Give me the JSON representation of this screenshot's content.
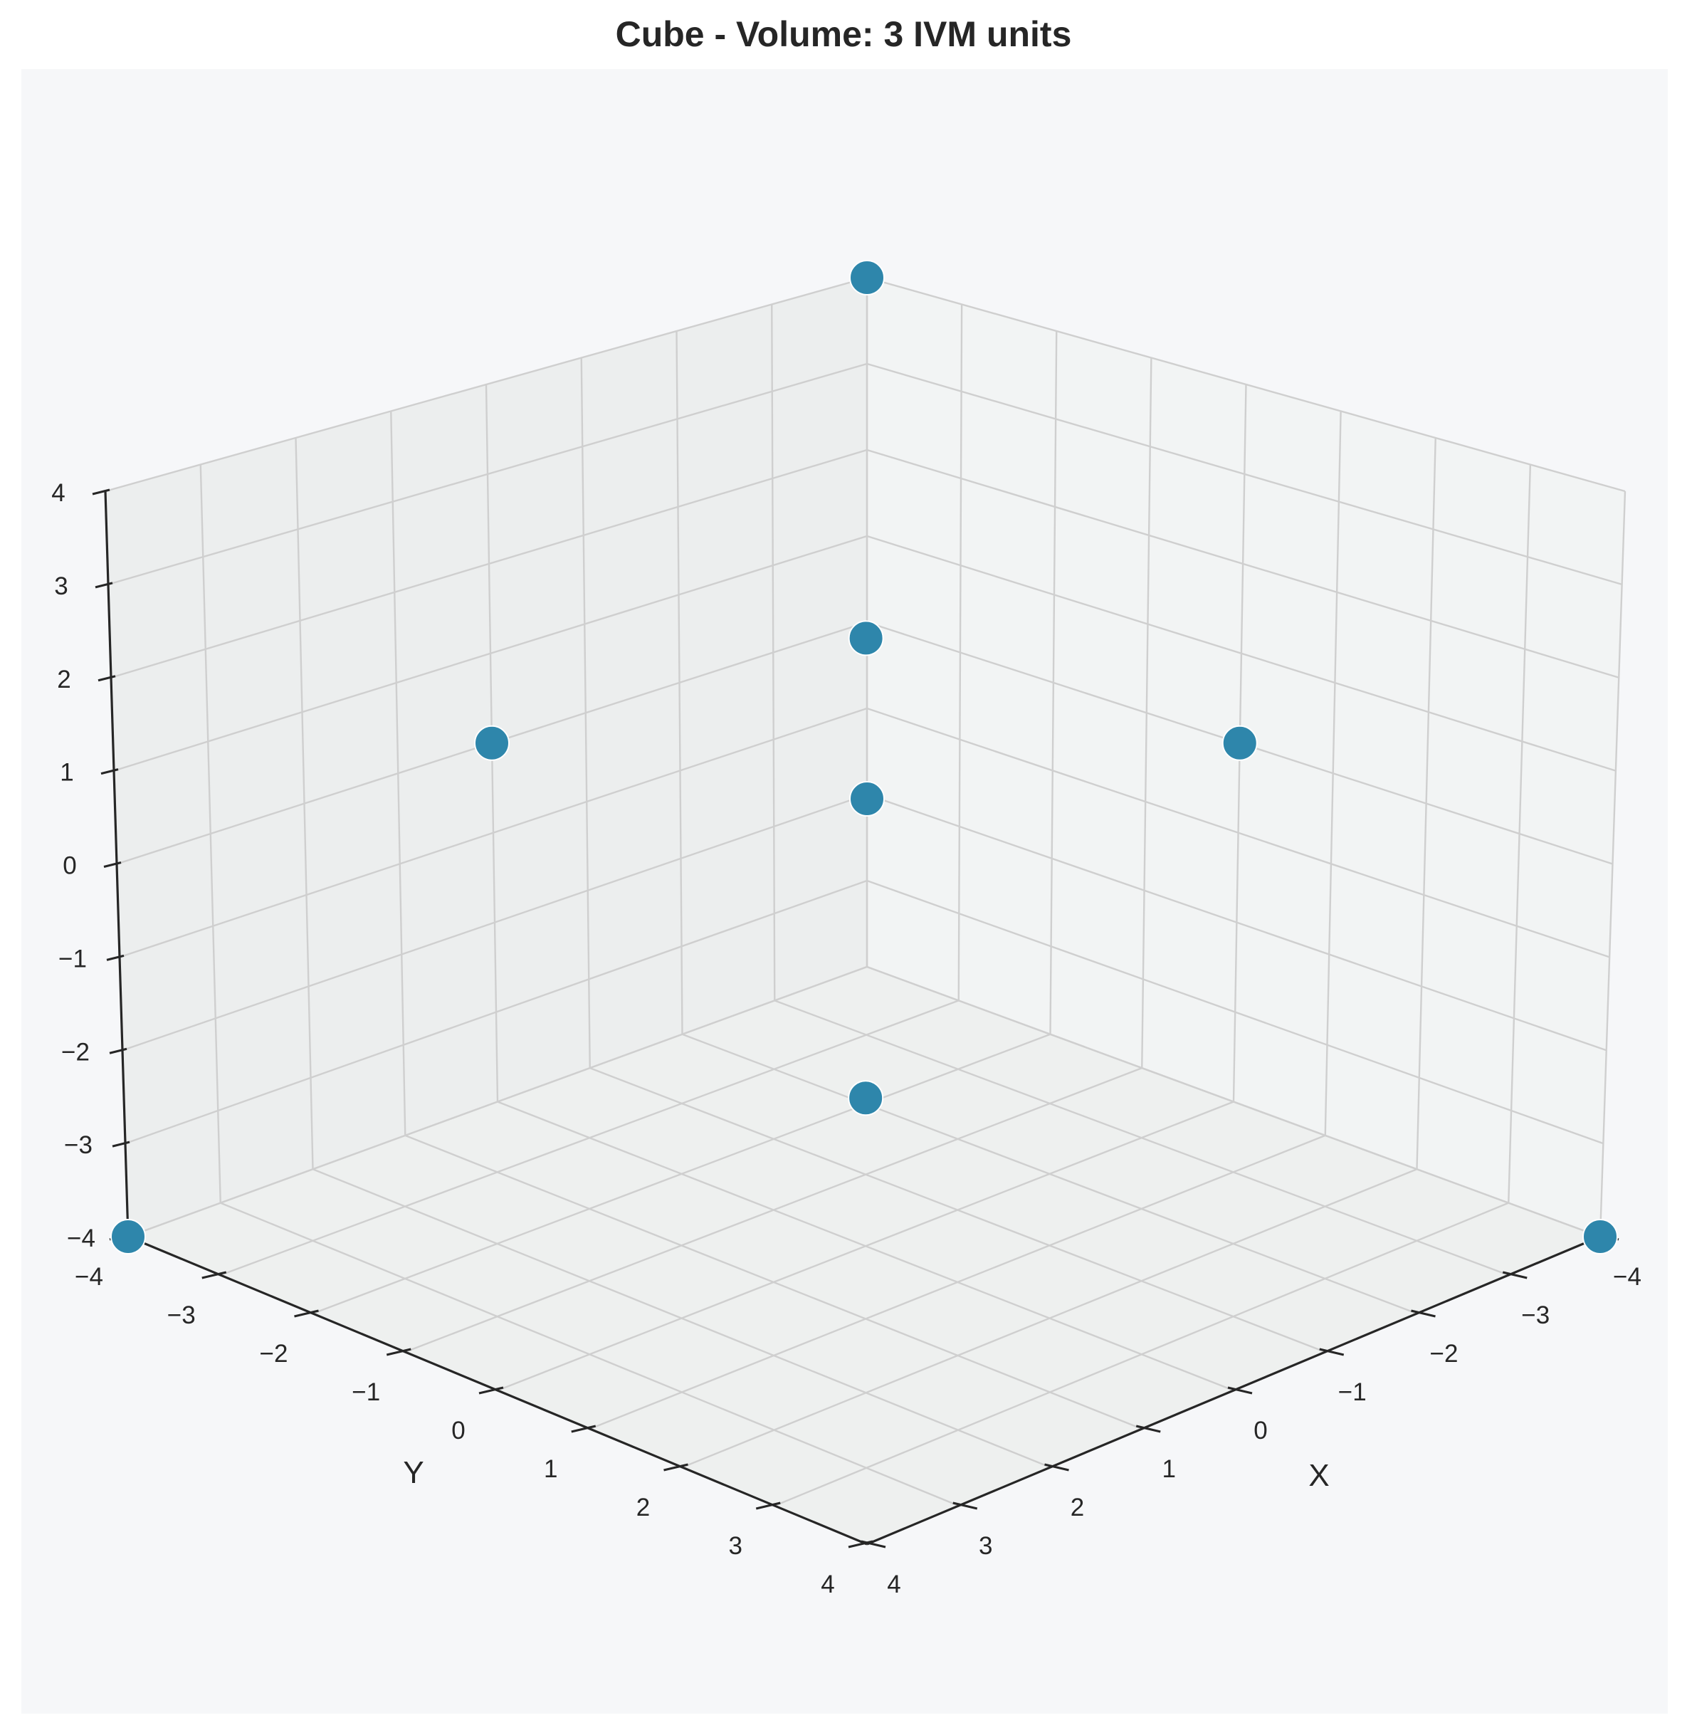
{
  "chart_data": {
    "type": "scatter",
    "title": "Cube - Volume: 3 IVM units",
    "xlabel": "X",
    "ylabel": "Y",
    "zlabel": "",
    "xlim": [
      -4,
      4
    ],
    "ylim": [
      -4,
      4
    ],
    "zlim": [
      -4,
      4
    ],
    "xticks": [
      "4",
      "3",
      "2",
      "1",
      "0",
      "−1",
      "−2",
      "−3",
      "−4"
    ],
    "yticks": [
      "−4",
      "−3",
      "−2",
      "−1",
      "0",
      "1",
      "2",
      "3",
      "4"
    ],
    "zticks": [
      "−4",
      "−3",
      "−2",
      "−1",
      "0",
      "1",
      "2",
      "3",
      "4"
    ],
    "grid": true,
    "projection": "3d",
    "points": [
      {
        "x": 4,
        "y": -4,
        "z": -4
      },
      {
        "x": -4,
        "y": 4,
        "z": -4
      },
      {
        "x": 4,
        "y": 4,
        "z": 4
      },
      {
        "x": -4,
        "y": -4,
        "z": 4
      },
      {
        "x": 0,
        "y": 0,
        "z": 2.65
      },
      {
        "x": 0,
        "y": 0,
        "z": -2.38
      },
      {
        "x": 0,
        "y": -4,
        "z": 0
      },
      {
        "x": -4,
        "y": 0,
        "z": 0
      }
    ],
    "colors": {
      "marker": "#2e86ab",
      "pane_left": "#eceeee",
      "pane_right": "#f2f4f4",
      "pane_floor": "#eef0ef",
      "background": "#f6f7f9"
    }
  }
}
